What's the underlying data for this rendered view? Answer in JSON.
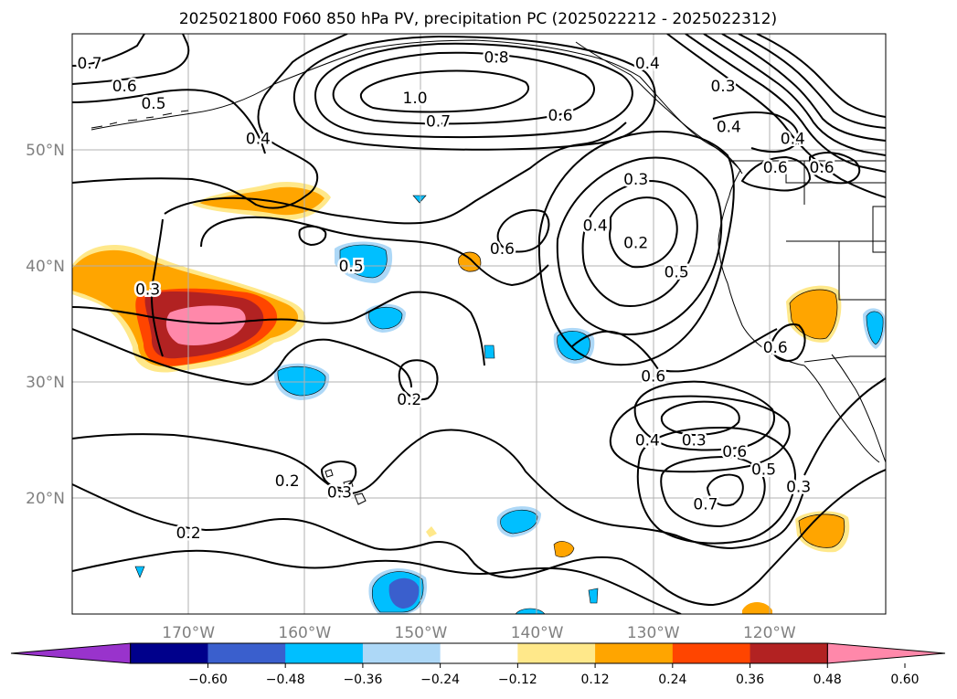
{
  "chart_data": {
    "type": "heatmap",
    "title": "2025021800 F060 850 hPa PV, precipitation PC (2025022212 - 2025022312)",
    "map_extent": {
      "lon": [
        -180,
        -110
      ],
      "lat": [
        10,
        60
      ]
    },
    "lat_ticks": [
      {
        "value": 50,
        "label": "50°N"
      },
      {
        "value": 40,
        "label": "40°N"
      },
      {
        "value": 30,
        "label": "30°N"
      },
      {
        "value": 20,
        "label": "20°N"
      }
    ],
    "lon_ticks": [
      {
        "value": -170,
        "label": "170°W"
      },
      {
        "value": -160,
        "label": "160°W"
      },
      {
        "value": -150,
        "label": "150°W"
      },
      {
        "value": -140,
        "label": "140°W"
      },
      {
        "value": -130,
        "label": "130°W"
      },
      {
        "value": -120,
        "label": "120°W"
      }
    ],
    "grid": true,
    "colorbar": {
      "orientation": "horizontal",
      "placement": "bottom",
      "extend": "both",
      "bounds": [
        -0.6,
        -0.48,
        -0.36,
        -0.24,
        -0.12,
        0.12,
        0.24,
        0.36,
        0.48,
        0.6
      ],
      "tick_labels": [
        "−0.60",
        "−0.48",
        "−0.36",
        "−0.24",
        "−0.12",
        "0.12",
        "0.24",
        "0.36",
        "0.48",
        "0.60"
      ],
      "colors": [
        "#9933cc",
        "#00008b",
        "#3a5fcd",
        "#00bfff",
        "#add8f7",
        "#ffffff",
        "#ffe88a",
        "#ffa500",
        "#ff4500",
        "#b22222",
        "#ff88aa"
      ]
    },
    "filled_regions": [
      {
        "lon": -170,
        "lat": 36,
        "value": 0.6
      },
      {
        "lon": -170,
        "lat": 35.5,
        "value": 0.5
      },
      {
        "lon": -176,
        "lat": 39.5,
        "value": 0.3
      },
      {
        "lon": -166,
        "lat": 45,
        "value": 0.3
      },
      {
        "lon": -161,
        "lat": 45.5,
        "value": 0.35
      },
      {
        "lon": -146,
        "lat": 40,
        "value": 0.3
      },
      {
        "lon": -116,
        "lat": 36.5,
        "value": 0.35
      },
      {
        "lon": -113.5,
        "lat": 17.5,
        "value": 0.35
      },
      {
        "lon": -138,
        "lat": 15.5,
        "value": 0.3
      },
      {
        "lon": -157,
        "lat": 40.5,
        "value": -0.3
      },
      {
        "lon": -154,
        "lat": 36,
        "value": -0.3
      },
      {
        "lon": -158.5,
        "lat": 30.5,
        "value": -0.3
      },
      {
        "lon": -137,
        "lat": 32.5,
        "value": -0.3
      },
      {
        "lon": -141.5,
        "lat": 17.5,
        "value": -0.3
      },
      {
        "lon": -152,
        "lat": 12,
        "value": -0.4
      },
      {
        "lon": -111,
        "lat": 34.5,
        "value": -0.3
      }
    ],
    "contours": [
      {
        "level": 1.0,
        "label": "1.0"
      },
      {
        "level": 0.8,
        "label": "0.8"
      },
      {
        "level": 0.7,
        "label": "0.7"
      },
      {
        "level": 0.6,
        "label": "0.6"
      },
      {
        "level": 0.5,
        "label": "0.5"
      },
      {
        "level": 0.4,
        "label": "0.4"
      },
      {
        "level": 0.3,
        "label": "0.3"
      },
      {
        "level": 0.2,
        "label": "0.2"
      }
    ],
    "contour_labels": [
      {
        "text": "0.7",
        "lon": -178.5,
        "lat": 57.5
      },
      {
        "text": "0.6",
        "lon": -175.5,
        "lat": 55.5
      },
      {
        "text": "0.5",
        "lon": -173,
        "lat": 54
      },
      {
        "text": "0.4",
        "lon": -164,
        "lat": 51
      },
      {
        "text": "1.0",
        "lon": -150.5,
        "lat": 54.5
      },
      {
        "text": "0.8",
        "lon": -143.5,
        "lat": 58
      },
      {
        "text": "0.7",
        "lon": -148.5,
        "lat": 52.5
      },
      {
        "text": "0.6",
        "lon": -138,
        "lat": 53
      },
      {
        "text": "0.4",
        "lon": -130.5,
        "lat": 57.5
      },
      {
        "text": "0.3",
        "lon": -124,
        "lat": 55.5
      },
      {
        "text": "0.4",
        "lon": -123.5,
        "lat": 52
      },
      {
        "text": "0.4",
        "lon": -118,
        "lat": 51
      },
      {
        "text": "0.6",
        "lon": -119.5,
        "lat": 48.5
      },
      {
        "text": "0.6",
        "lon": -115.5,
        "lat": 48.5
      },
      {
        "text": "0.3",
        "lon": -131.5,
        "lat": 47.5
      },
      {
        "text": "0.4",
        "lon": -135,
        "lat": 43.5
      },
      {
        "text": "0.2",
        "lon": -131.5,
        "lat": 42
      },
      {
        "text": "0.6",
        "lon": -143,
        "lat": 41.5
      },
      {
        "text": "0.5",
        "lon": -128,
        "lat": 39.5
      },
      {
        "text": "0.5",
        "lon": -156,
        "lat": 40
      },
      {
        "text": "0.3",
        "lon": -173.5,
        "lat": 38
      },
      {
        "text": "0.6",
        "lon": -130,
        "lat": 30.5
      },
      {
        "text": "0.2",
        "lon": -151,
        "lat": 28.5
      },
      {
        "text": "0.4",
        "lon": -130.5,
        "lat": 25
      },
      {
        "text": "0.3",
        "lon": -126.5,
        "lat": 25
      },
      {
        "text": "0.6",
        "lon": -123,
        "lat": 24
      },
      {
        "text": "0.5",
        "lon": -120.5,
        "lat": 22.5
      },
      {
        "text": "0.3",
        "lon": -117.5,
        "lat": 21
      },
      {
        "text": "0.6",
        "lon": -119.5,
        "lat": 33
      },
      {
        "text": "0.2",
        "lon": -161.5,
        "lat": 21.5
      },
      {
        "text": "0.3",
        "lon": -157,
        "lat": 20.5
      },
      {
        "text": "0.7",
        "lon": -125.5,
        "lat": 19.5
      },
      {
        "text": "0.2",
        "lon": -170,
        "lat": 17
      }
    ]
  }
}
